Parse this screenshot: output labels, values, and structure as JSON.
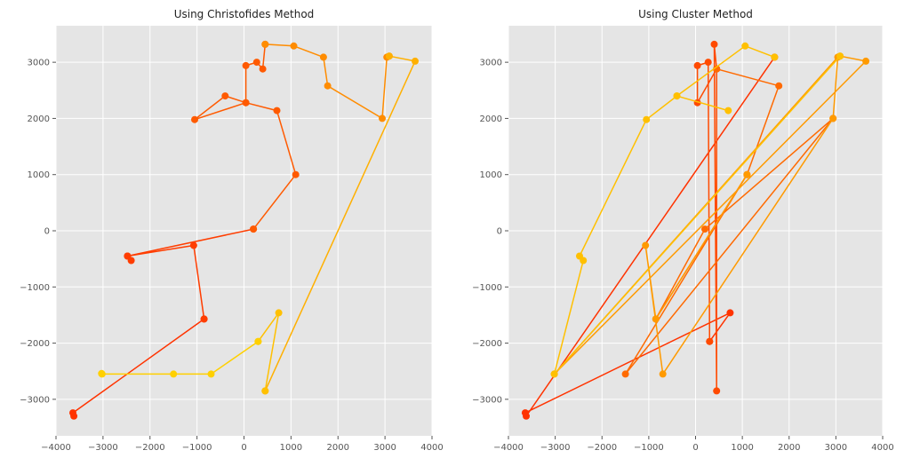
{
  "chart_data": [
    {
      "type": "line",
      "title": "Using Christofides Method",
      "xlabel": "",
      "ylabel": "",
      "xlim": [
        -4000,
        4000
      ],
      "ylim": [
        -3650,
        3650
      ],
      "xticks": [
        -4000,
        -3000,
        -2000,
        -1000,
        0,
        1000,
        2000,
        3000,
        4000
      ],
      "yticks": [
        -3000,
        -2000,
        -1000,
        0,
        1000,
        2000,
        3000
      ],
      "grid": true,
      "segments": [
        {
          "color": "#ff3300",
          "x": [
            -3620,
            -3640,
            -850
          ],
          "y": [
            -3300,
            -3240,
            -1570
          ]
        },
        {
          "color": "#ff3d00",
          "x": [
            -850,
            -1070,
            -2480,
            -2400,
            -2480,
            200
          ],
          "y": [
            -1570,
            -260,
            -450,
            -530,
            -450,
            30
          ]
        },
        {
          "color": "#ff5a00",
          "x": [
            200,
            1100,
            700,
            40,
            -1050,
            -400,
            40,
            40,
            270,
            400,
            450
          ],
          "y": [
            30,
            1000,
            2140,
            2280,
            1980,
            2400,
            2280,
            2940,
            3000,
            2880,
            3320
          ]
        },
        {
          "color": "#ff8c00",
          "x": [
            450,
            1060,
            1690,
            1780,
            2940,
            3040,
            3090
          ],
          "y": [
            3320,
            3290,
            3090,
            2580,
            2000,
            3090,
            3110
          ]
        },
        {
          "color": "#ffb000",
          "x": [
            3090,
            3640,
            450
          ],
          "y": [
            3110,
            3020,
            -2850
          ]
        },
        {
          "color": "#ffc000",
          "x": [
            450,
            740,
            300
          ],
          "y": [
            -2850,
            -1460,
            -1970
          ]
        },
        {
          "color": "#ffd000",
          "x": [
            300,
            -700,
            -1500,
            -3020,
            -3030
          ],
          "y": [
            -1970,
            -2550,
            -2550,
            -2550,
            -2540
          ]
        }
      ]
    },
    {
      "type": "line",
      "title": "Using Cluster Method",
      "xlabel": "",
      "ylabel": "",
      "xlim": [
        -4000,
        4000
      ],
      "ylim": [
        -3650,
        3650
      ],
      "xticks": [
        -4000,
        -3000,
        -2000,
        -1000,
        0,
        1000,
        2000,
        3000,
        4000
      ],
      "yticks": [
        -3000,
        -2000,
        -1000,
        0,
        1000,
        2000,
        3000
      ],
      "grid": true,
      "segments": [
        {
          "color": "#ff3300",
          "x": [
            1690,
            -3620,
            -3640,
            740,
            300
          ],
          "y": [
            3090,
            -3300,
            -3240,
            -1460,
            -1970
          ]
        },
        {
          "color": "#ff4a00",
          "x": [
            300,
            270,
            40,
            40,
            450,
            450,
            400,
            450
          ],
          "y": [
            -1970,
            3000,
            2940,
            2280,
            2880,
            -2850,
            3320,
            2880
          ]
        },
        {
          "color": "#ff6a00",
          "x": [
            450,
            1780,
            1100,
            -850,
            200,
            2940,
            -1500,
            1100
          ],
          "y": [
            2880,
            2580,
            1000,
            -1570,
            30,
            2000,
            -2550,
            1000
          ]
        },
        {
          "color": "#ff9a00",
          "x": [
            1100,
            -850,
            -1070,
            -700,
            2940,
            3040,
            -3020,
            3640,
            3090
          ],
          "y": [
            1000,
            -1570,
            -260,
            -2550,
            2000,
            3090,
            -2550,
            3020,
            3110
          ]
        },
        {
          "color": "#ffc000",
          "x": [
            3090,
            -3020,
            -2400,
            -2480,
            -1050,
            -400,
            700,
            -400,
            1060,
            1690
          ],
          "y": [
            3110,
            -2550,
            -530,
            -450,
            1980,
            2400,
            2140,
            2400,
            3290,
            3090
          ]
        }
      ]
    }
  ]
}
